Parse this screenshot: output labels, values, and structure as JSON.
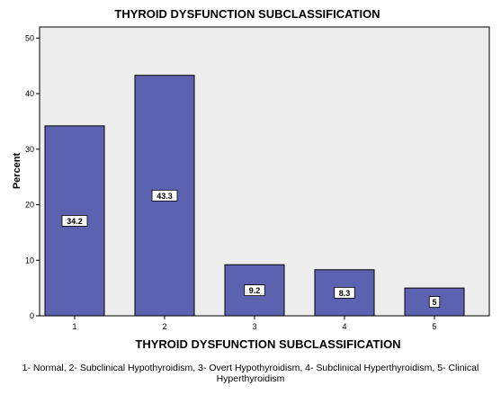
{
  "chart_data": {
    "type": "bar",
    "title": "THYROID DYSFUNCTION SUBCLASSIFICATION",
    "xlabel": "THYROID DYSFUNCTION SUBCLASSIFICATION",
    "ylabel": "Percent",
    "categories": [
      "1",
      "2",
      "3",
      "4",
      "5"
    ],
    "values": [
      34.2,
      43.3,
      9.2,
      8.3,
      5
    ],
    "data_labels": [
      "34.2",
      "43.3",
      "9.2",
      "8.3",
      "5"
    ],
    "yticks": [
      "0",
      "10",
      "20",
      "30",
      "40",
      "50"
    ],
    "ylim": [
      0,
      52
    ],
    "grid": false,
    "bar_color": "#5b63b0",
    "bar_edge_color": "#000000",
    "plot_background": "#ededed"
  },
  "footnote": "1- Normal, 2- Subclinical Hypothyroidism, 3- Overt Hypothyroidism, 4- Subclinical Hyperthyroidism, 5- Clinical Hyperthyroidism"
}
